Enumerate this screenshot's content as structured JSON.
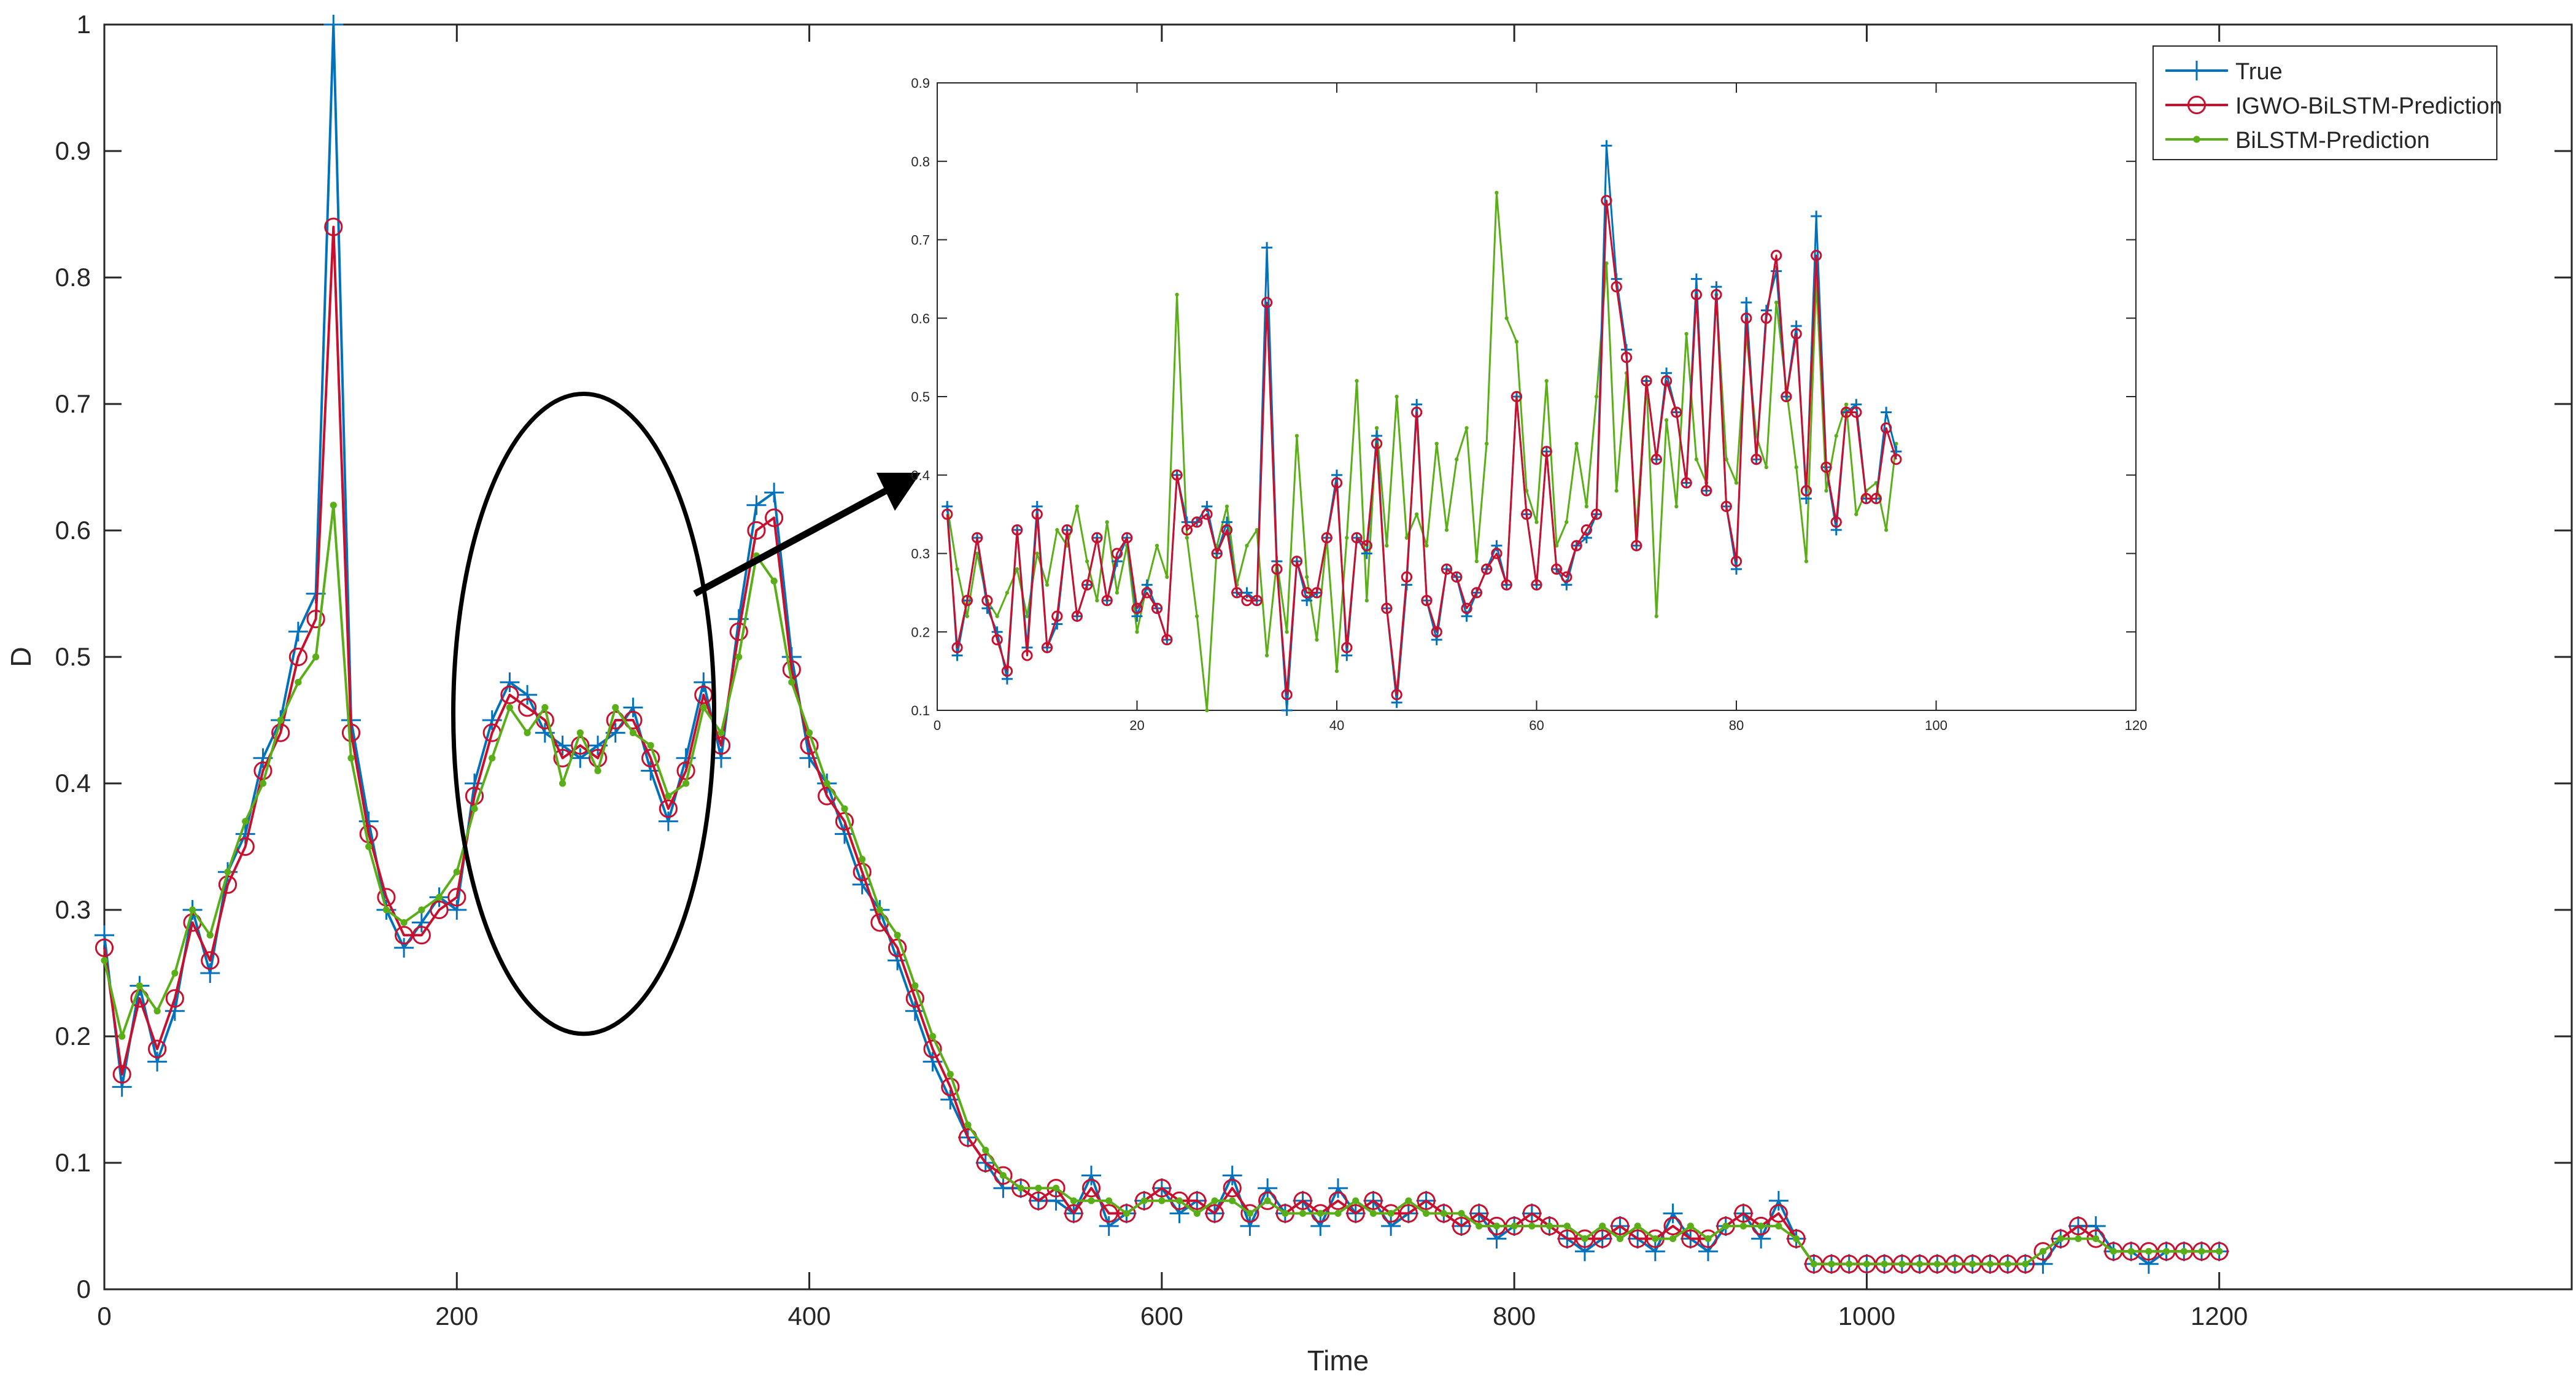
{
  "chart_data": [
    {
      "id": "main",
      "type": "line",
      "xlabel": "Time",
      "ylabel": "D",
      "xlim": [
        0,
        1400
      ],
      "ylim": [
        0,
        1
      ],
      "xticks": [
        0,
        200,
        400,
        600,
        800,
        1000,
        1200
      ],
      "yticks": [
        0,
        0.1,
        0.2,
        0.3,
        0.4,
        0.5,
        0.6,
        0.7,
        0.8,
        0.9,
        1
      ],
      "grid": false,
      "legend_position": "top-right",
      "x_step": 10,
      "series": [
        {
          "name": "True",
          "color": "#0072BD",
          "marker": "plus",
          "values": [
            0.28,
            0.16,
            0.24,
            0.18,
            0.22,
            0.3,
            0.25,
            0.33,
            0.36,
            0.42,
            0.45,
            0.52,
            0.55,
            1.0,
            0.45,
            0.37,
            0.3,
            0.27,
            0.29,
            0.31,
            0.3,
            0.4,
            0.45,
            0.48,
            0.47,
            0.44,
            0.43,
            0.42,
            0.43,
            0.44,
            0.46,
            0.41,
            0.37,
            0.42,
            0.48,
            0.42,
            0.53,
            0.62,
            0.63,
            0.5,
            0.42,
            0.4,
            0.36,
            0.32,
            0.3,
            0.26,
            0.22,
            0.18,
            0.15,
            0.12,
            0.1,
            0.08,
            0.08,
            0.07,
            0.07,
            0.06,
            0.09,
            0.05,
            0.06,
            0.07,
            0.08,
            0.06,
            0.07,
            0.06,
            0.09,
            0.05,
            0.08,
            0.06,
            0.07,
            0.05,
            0.08,
            0.06,
            0.07,
            0.05,
            0.06,
            0.07,
            0.06,
            0.05,
            0.06,
            0.04,
            0.05,
            0.06,
            0.05,
            0.04,
            0.03,
            0.04,
            0.05,
            0.04,
            0.03,
            0.06,
            0.04,
            0.03,
            0.05,
            0.06,
            0.04,
            0.07,
            0.04,
            0.02,
            0.02,
            0.02,
            0.02,
            0.02,
            0.02,
            0.02,
            0.02,
            0.02,
            0.02,
            0.02,
            0.02,
            0.02,
            0.02,
            0.04,
            0.05,
            0.05,
            0.03,
            0.03,
            0.02,
            0.03,
            0.03,
            0.03,
            0.03
          ]
        },
        {
          "name": "IGWO-BiLSTM-Prediction",
          "color": "#C8102E",
          "marker": "circle",
          "values": [
            0.27,
            0.17,
            0.23,
            0.19,
            0.23,
            0.29,
            0.26,
            0.32,
            0.35,
            0.41,
            0.44,
            0.5,
            0.53,
            0.84,
            0.44,
            0.36,
            0.31,
            0.28,
            0.28,
            0.3,
            0.31,
            0.39,
            0.44,
            0.47,
            0.46,
            0.45,
            0.42,
            0.43,
            0.42,
            0.45,
            0.45,
            0.42,
            0.38,
            0.41,
            0.47,
            0.43,
            0.52,
            0.6,
            0.61,
            0.49,
            0.43,
            0.39,
            0.37,
            0.33,
            0.29,
            0.27,
            0.23,
            0.19,
            0.16,
            0.12,
            0.1,
            0.09,
            0.08,
            0.07,
            0.08,
            0.06,
            0.08,
            0.06,
            0.06,
            0.07,
            0.08,
            0.07,
            0.07,
            0.06,
            0.08,
            0.06,
            0.07,
            0.06,
            0.07,
            0.06,
            0.07,
            0.06,
            0.07,
            0.06,
            0.06,
            0.07,
            0.06,
            0.05,
            0.06,
            0.05,
            0.05,
            0.06,
            0.05,
            0.04,
            0.04,
            0.04,
            0.05,
            0.04,
            0.04,
            0.05,
            0.04,
            0.04,
            0.05,
            0.06,
            0.05,
            0.06,
            0.04,
            0.02,
            0.02,
            0.02,
            0.02,
            0.02,
            0.02,
            0.02,
            0.02,
            0.02,
            0.02,
            0.02,
            0.02,
            0.02,
            0.03,
            0.04,
            0.05,
            0.04,
            0.03,
            0.03,
            0.03,
            0.03,
            0.03,
            0.03,
            0.03
          ]
        },
        {
          "name": "BiLSTM-Prediction",
          "color": "#5AAE17",
          "marker": "dot",
          "values": [
            0.26,
            0.2,
            0.24,
            0.22,
            0.25,
            0.3,
            0.28,
            0.33,
            0.37,
            0.4,
            0.45,
            0.48,
            0.5,
            0.62,
            0.42,
            0.35,
            0.3,
            0.29,
            0.3,
            0.31,
            0.33,
            0.38,
            0.42,
            0.46,
            0.44,
            0.46,
            0.4,
            0.44,
            0.41,
            0.46,
            0.44,
            0.43,
            0.39,
            0.4,
            0.46,
            0.44,
            0.5,
            0.58,
            0.56,
            0.48,
            0.44,
            0.4,
            0.38,
            0.34,
            0.3,
            0.28,
            0.24,
            0.2,
            0.17,
            0.13,
            0.11,
            0.09,
            0.08,
            0.08,
            0.08,
            0.07,
            0.07,
            0.07,
            0.06,
            0.07,
            0.07,
            0.07,
            0.06,
            0.07,
            0.07,
            0.06,
            0.07,
            0.06,
            0.06,
            0.06,
            0.06,
            0.07,
            0.06,
            0.06,
            0.07,
            0.06,
            0.06,
            0.06,
            0.05,
            0.05,
            0.05,
            0.05,
            0.05,
            0.05,
            0.04,
            0.05,
            0.04,
            0.05,
            0.04,
            0.04,
            0.05,
            0.04,
            0.05,
            0.05,
            0.05,
            0.05,
            0.04,
            0.02,
            0.02,
            0.02,
            0.02,
            0.02,
            0.02,
            0.02,
            0.02,
            0.02,
            0.02,
            0.02,
            0.02,
            0.02,
            0.03,
            0.04,
            0.04,
            0.04,
            0.03,
            0.03,
            0.03,
            0.03,
            0.03,
            0.03,
            0.03
          ]
        }
      ],
      "annotation": {
        "shape": "ellipse",
        "center": [
          272,
          0.455
        ],
        "radii": [
          74,
          0.253
        ],
        "arrow_from": [
          335,
          0.55
        ],
        "points_to": "inset"
      }
    },
    {
      "id": "inset",
      "type": "line",
      "xlim": [
        0,
        120
      ],
      "ylim": [
        0.1,
        0.9
      ],
      "xticks": [
        0,
        20,
        40,
        60,
        80,
        100,
        120
      ],
      "yticks": [
        0.1,
        0.2,
        0.3,
        0.4,
        0.5,
        0.6,
        0.7,
        0.8,
        0.9
      ],
      "grid": false,
      "series": [
        {
          "name": "True",
          "color": "#0072BD",
          "values": [
            0.36,
            0.17,
            0.24,
            0.32,
            0.23,
            0.2,
            0.14,
            0.33,
            0.18,
            0.36,
            0.18,
            0.21,
            0.33,
            0.22,
            0.26,
            0.32,
            0.24,
            0.29,
            0.32,
            0.22,
            0.26,
            0.23,
            0.19,
            0.4,
            0.34,
            0.34,
            0.36,
            0.3,
            0.34,
            0.25,
            0.25,
            0.24,
            0.69,
            0.29,
            0.1,
            0.29,
            0.24,
            0.25,
            0.32,
            0.4,
            0.17,
            0.32,
            0.3,
            0.45,
            0.23,
            0.11,
            0.26,
            0.49,
            0.24,
            0.19,
            0.28,
            0.27,
            0.22,
            0.25,
            0.28,
            0.31,
            0.26,
            0.5,
            0.35,
            0.26,
            0.43,
            0.28,
            0.26,
            0.31,
            0.32,
            0.35,
            0.82,
            0.65,
            0.56,
            0.31,
            0.52,
            0.42,
            0.53,
            0.48,
            0.39,
            0.65,
            0.38,
            0.64,
            0.36,
            0.28,
            0.62,
            0.42,
            0.61,
            0.66,
            0.5,
            0.59,
            0.37,
            0.73,
            0.41,
            0.33,
            0.48,
            0.49,
            0.37,
            0.37,
            0.48,
            0.43
          ]
        },
        {
          "name": "IGWO-BiLSTM-Prediction",
          "color": "#C8102E",
          "values": [
            0.35,
            0.18,
            0.24,
            0.32,
            0.24,
            0.19,
            0.15,
            0.33,
            0.17,
            0.35,
            0.18,
            0.22,
            0.33,
            0.22,
            0.26,
            0.32,
            0.24,
            0.3,
            0.32,
            0.23,
            0.25,
            0.23,
            0.19,
            0.4,
            0.33,
            0.34,
            0.35,
            0.3,
            0.33,
            0.25,
            0.24,
            0.24,
            0.62,
            0.28,
            0.12,
            0.29,
            0.25,
            0.25,
            0.32,
            0.39,
            0.18,
            0.32,
            0.31,
            0.44,
            0.23,
            0.12,
            0.27,
            0.48,
            0.24,
            0.2,
            0.28,
            0.27,
            0.23,
            0.25,
            0.28,
            0.3,
            0.26,
            0.5,
            0.35,
            0.26,
            0.43,
            0.28,
            0.27,
            0.31,
            0.33,
            0.35,
            0.75,
            0.64,
            0.55,
            0.31,
            0.52,
            0.42,
            0.52,
            0.48,
            0.39,
            0.63,
            0.38,
            0.63,
            0.36,
            0.29,
            0.6,
            0.42,
            0.6,
            0.68,
            0.5,
            0.58,
            0.38,
            0.68,
            0.41,
            0.34,
            0.48,
            0.48,
            0.37,
            0.37,
            0.46,
            0.42
          ]
        },
        {
          "name": "BiLSTM-Prediction",
          "color": "#5AAE17",
          "values": [
            0.36,
            0.28,
            0.22,
            0.3,
            0.24,
            0.22,
            0.25,
            0.28,
            0.22,
            0.3,
            0.26,
            0.33,
            0.31,
            0.36,
            0.29,
            0.24,
            0.34,
            0.25,
            0.31,
            0.2,
            0.26,
            0.31,
            0.27,
            0.63,
            0.32,
            0.22,
            0.1,
            0.31,
            0.36,
            0.26,
            0.31,
            0.33,
            0.17,
            0.29,
            0.2,
            0.45,
            0.27,
            0.19,
            0.32,
            0.15,
            0.32,
            0.52,
            0.24,
            0.46,
            0.31,
            0.5,
            0.32,
            0.35,
            0.31,
            0.44,
            0.33,
            0.42,
            0.46,
            0.29,
            0.44,
            0.76,
            0.6,
            0.57,
            0.38,
            0.34,
            0.52,
            0.31,
            0.34,
            0.44,
            0.36,
            0.5,
            0.67,
            0.38,
            0.53,
            0.33,
            0.52,
            0.22,
            0.47,
            0.36,
            0.58,
            0.42,
            0.39,
            0.63,
            0.42,
            0.39,
            0.58,
            0.45,
            0.41,
            0.62,
            0.51,
            0.41,
            0.29,
            0.65,
            0.38,
            0.45,
            0.49,
            0.35,
            0.38,
            0.39,
            0.33,
            0.44
          ]
        }
      ]
    }
  ]
}
